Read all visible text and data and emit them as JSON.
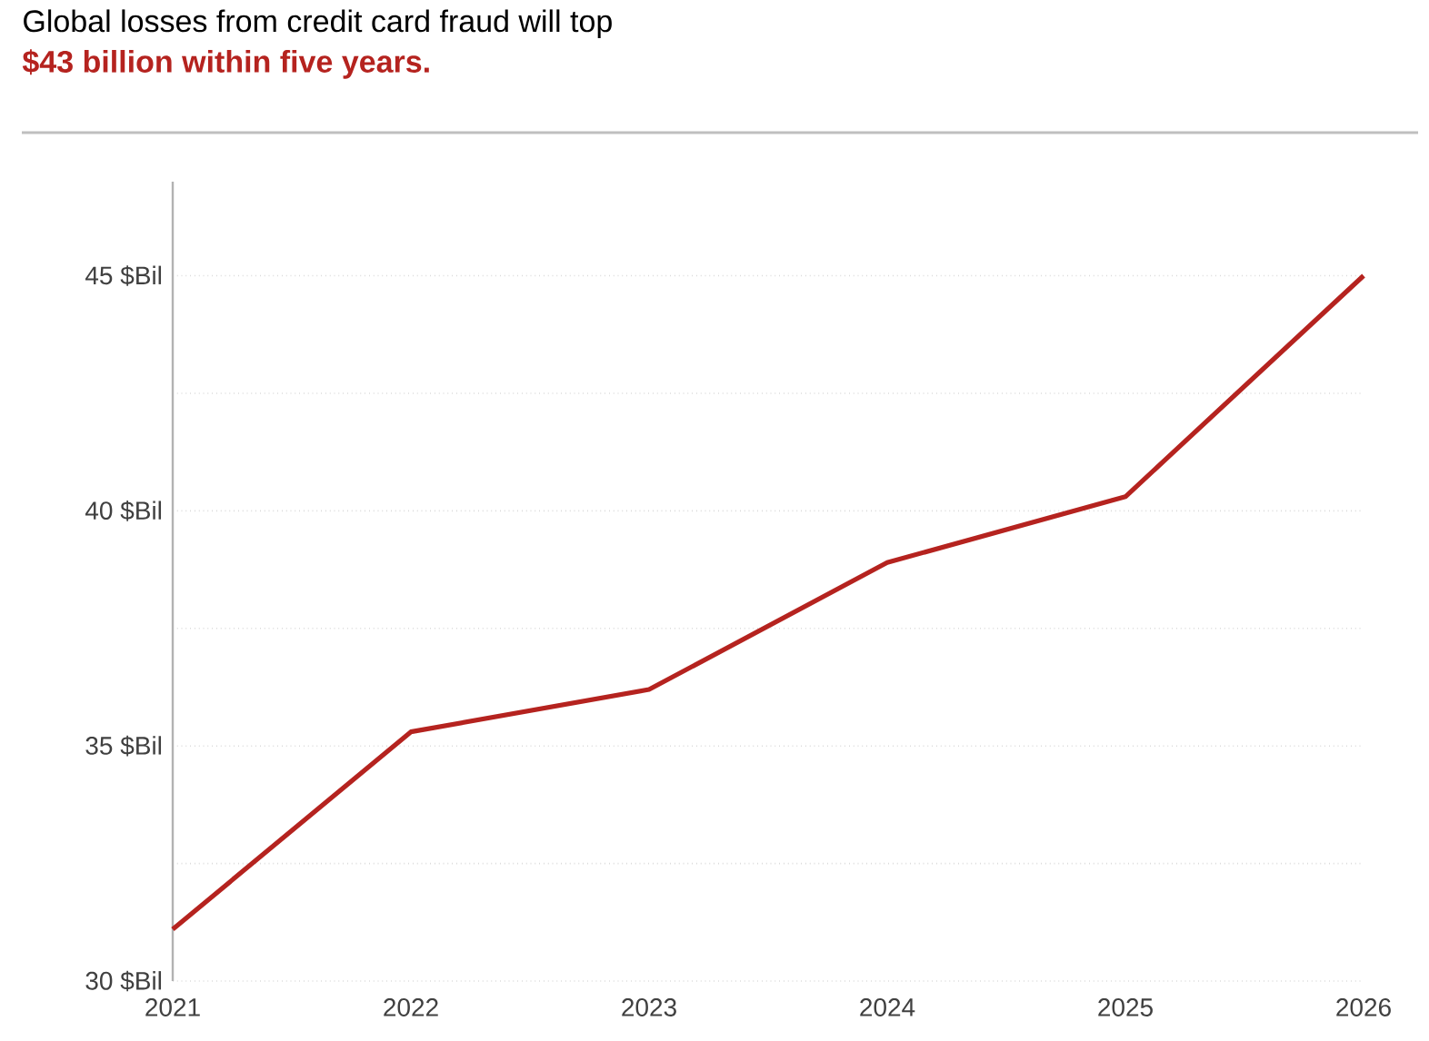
{
  "chart_data": {
    "type": "line",
    "title": "Global losses from credit card fraud will top",
    "subtitle": "$43 billion within five years.",
    "categories": [
      "2021",
      "2022",
      "2023",
      "2024",
      "2025",
      "2026"
    ],
    "series": [
      {
        "color": "#b5231f",
        "values": [
          31.1,
          35.3,
          36.2,
          38.9,
          40.3,
          45.0
        ]
      }
    ],
    "ylim": [
      30,
      47
    ],
    "yticks": [
      {
        "value": 30,
        "label": "30 $Bil"
      },
      {
        "value": 32.5,
        "label": null
      },
      {
        "value": 35,
        "label": "35 $Bil"
      },
      {
        "value": 37.5,
        "label": null
      },
      {
        "value": 40,
        "label": "40 $Bil"
      },
      {
        "value": 42.5,
        "label": null
      },
      {
        "value": 45,
        "label": "45 $Bil"
      }
    ],
    "grid": "y",
    "marker": "none",
    "line_style": "solid"
  }
}
